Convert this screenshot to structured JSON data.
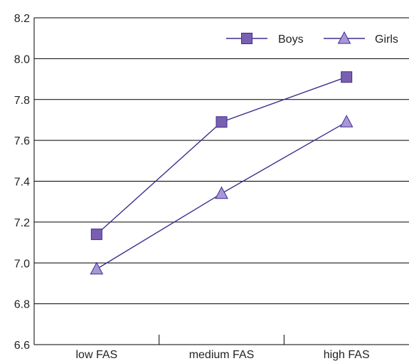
{
  "chart_data": {
    "type": "line",
    "categories": [
      "low FAS",
      "medium FAS",
      "high FAS"
    ],
    "series": [
      {
        "name": "Boys",
        "values": [
          7.14,
          7.69,
          7.91
        ],
        "marker": "square",
        "color": "#7a5fb0",
        "line_color": "#3b2f8f"
      },
      {
        "name": "Girls",
        "values": [
          6.97,
          7.34,
          7.69
        ],
        "marker": "triangle",
        "color": "#a996d6",
        "line_color": "#3b2f8f"
      }
    ],
    "ylim": [
      6.6,
      8.2
    ],
    "yticks": [
      "6.6",
      "6.8",
      "7.0",
      "7.2",
      "7.4",
      "7.6",
      "7.8",
      "8.0",
      "8.2"
    ],
    "title": "",
    "xlabel": "",
    "ylabel": "",
    "grid": "horizontal",
    "legend_position": "top-right"
  }
}
